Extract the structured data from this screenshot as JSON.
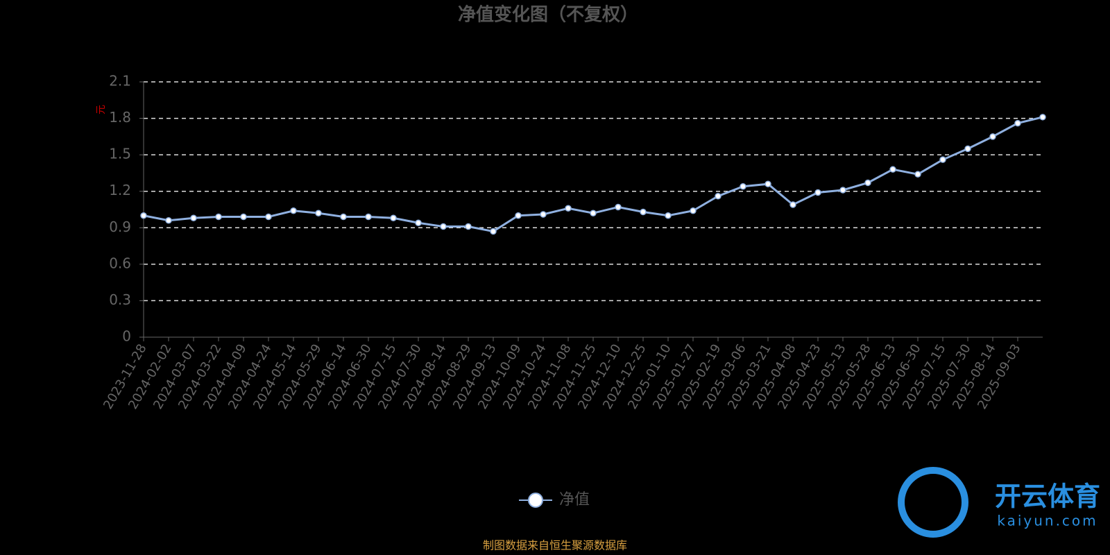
{
  "chart_data": {
    "type": "line",
    "title": "净值变化图（不复权）",
    "y_label": "元",
    "categories": [
      "2023-11-28",
      "2024-02-02",
      "2024-03-07",
      "2024-03-22",
      "2024-04-09",
      "2024-04-24",
      "2024-05-14",
      "2024-05-29",
      "2024-06-14",
      "2024-06-30",
      "2024-07-15",
      "2024-07-30",
      "2024-08-14",
      "2024-08-29",
      "2024-09-13",
      "2024-10-09",
      "2024-10-24",
      "2024-11-08",
      "2024-11-25",
      "2024-12-10",
      "2024-12-25",
      "2025-01-10",
      "2025-01-27",
      "2025-02-19",
      "2025-03-06",
      "2025-03-21",
      "2025-04-08",
      "2025-04-23",
      "2025-05-13",
      "2025-05-28",
      "2025-06-13",
      "2025-06-30",
      "2025-07-15",
      "2025-07-30",
      "2025-08-14",
      "2025-09-03",
      null
    ],
    "series": [
      {
        "name": "净值",
        "color": "#8fb0e0",
        "values": [
          1.0,
          0.96,
          0.98,
          0.99,
          0.99,
          0.99,
          1.04,
          1.02,
          0.99,
          0.99,
          0.98,
          0.94,
          0.91,
          0.91,
          0.87,
          1.0,
          1.01,
          1.06,
          1.02,
          1.07,
          1.03,
          1.0,
          1.04,
          1.16,
          1.24,
          1.26,
          1.09,
          1.19,
          1.21,
          1.27,
          1.38,
          1.34,
          1.46,
          1.55,
          1.65,
          1.76,
          1.81
        ]
      }
    ],
    "ylim": [
      0,
      2.1
    ],
    "yticks": [
      0,
      0.3,
      0.6,
      0.9,
      1.2,
      1.5,
      1.8,
      2.1
    ],
    "grid": true,
    "source": "制图数据来自恒生聚源数据库",
    "watermark": {
      "name": "开云体育",
      "site": "kaiyun.com"
    }
  }
}
